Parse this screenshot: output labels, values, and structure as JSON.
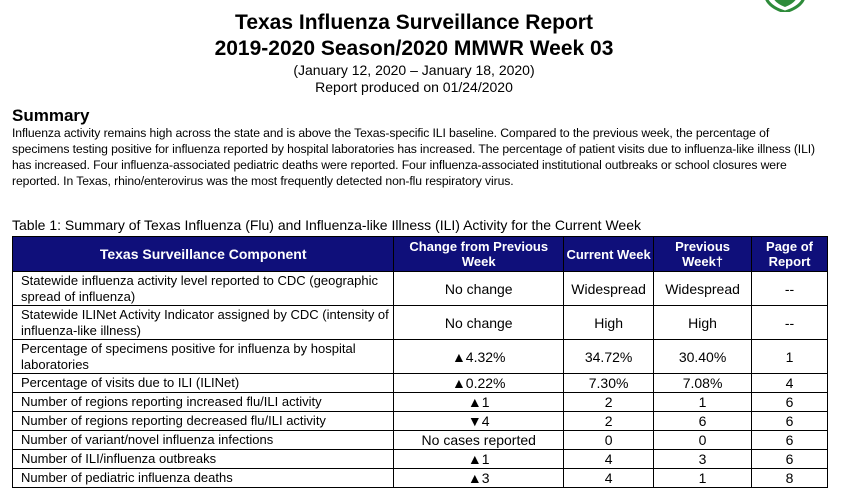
{
  "report": {
    "title": "Texas Influenza Surveillance Report",
    "season": "2019-2020 Season/2020 MMWR Week 03",
    "date_range": "(January 12, 2020 – January 18, 2020)",
    "produced": "Report produced on 01/24/2020"
  },
  "summary": {
    "heading": "Summary",
    "text": "Influenza activity remains high across the state and is above the Texas-specific ILI baseline. Compared to the previous week, the percentage of specimens testing positive for influenza reported by hospital laboratories has increased. The percentage of patient visits due to influenza-like illness (ILI) has increased. Four influenza-associated pediatric deaths were reported. Four influenza-associated institutional outbreaks or school closures were reported.  In Texas, rhino/enterovirus was the most frequently detected non-flu respiratory virus."
  },
  "table": {
    "caption": "Table 1: Summary of Texas Influenza (Flu) and Influenza-like Illness (ILI) Activity for the Current Week",
    "headers": [
      "Texas Surveillance Component",
      "Change from Previous Week",
      "Current Week",
      "Previous Week†",
      "Page of Report"
    ],
    "rows": [
      [
        "Statewide influenza activity level reported to CDC (geographic spread of influenza)",
        "No change",
        "Widespread",
        "Widespread",
        "--"
      ],
      [
        "Statewide ILINet Activity Indicator assigned by CDC (intensity of influenza-like illness)",
        "No change",
        "High",
        "High",
        "--"
      ],
      [
        "Percentage of specimens positive for influenza by hospital laboratories",
        "▲4.32%",
        "34.72%",
        "30.40%",
        "1"
      ],
      [
        "Percentage of visits due to ILI (ILINet)",
        "▲0.22%",
        "7.30%",
        "7.08%",
        "4"
      ],
      [
        "Number of regions reporting increased flu/ILI activity",
        "▲1",
        "2",
        "1",
        "6"
      ],
      [
        "Number of regions reporting decreased flu/ILI activity",
        "▼4",
        "2",
        "6",
        "6"
      ],
      [
        "Number of variant/novel influenza infections",
        "No cases reported",
        "0",
        "0",
        "6"
      ],
      [
        "Number of ILI/influenza outbreaks",
        "▲1",
        "4",
        "3",
        "6"
      ],
      [
        "Number of pediatric influenza deaths",
        "▲3",
        "4",
        "1",
        "8"
      ]
    ]
  },
  "colors": {
    "header_bg": "#0f0f7a",
    "logo_green": "#2e8b3a"
  }
}
